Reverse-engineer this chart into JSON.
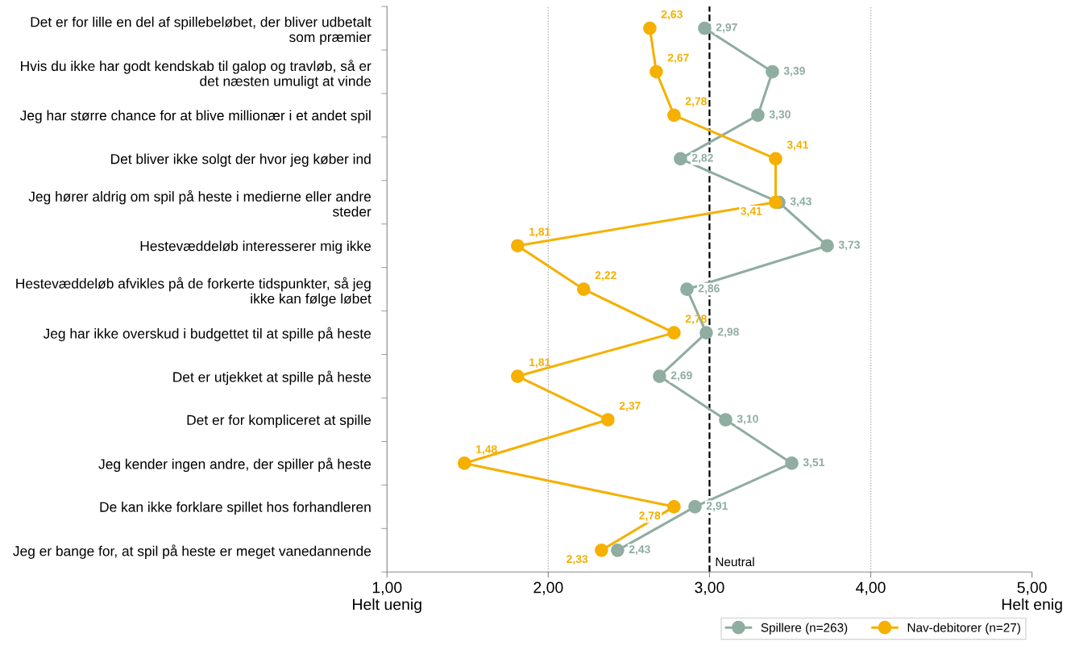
{
  "chart_data": {
    "type": "line",
    "orientation": "horizontal",
    "categories": [
      "Det er for lille en del af spillebeløbet, der bliver udbetalt som præmier",
      "Hvis du ikke har godt kendskab til galop og travløb, så er det næsten umuligt at vinde",
      "Jeg har større chance for at blive millionær i et andet spil",
      "Det bliver ikke solgt der hvor jeg køber ind",
      "Jeg hører aldrig om spil på heste i medierne eller andre steder",
      "Hestevæddeløb interesserer mig ikke",
      "Hestevæddeløb afvikles på de forkerte tidspunkter, så jeg ikke kan følge løbet",
      "Jeg har ikke overskud i budgettet til at spille på heste",
      "Det er utjekket at spille på heste",
      "Det er for kompliceret at spille",
      "Jeg kender ingen andre, der spiller på heste",
      "De kan ikke forklare spillet hos forhandleren",
      "Jeg er bange for, at spil på heste er meget vanedannende"
    ],
    "series": [
      {
        "name": "Spillere (n=263)",
        "color": "#8fada1",
        "values": [
          2.97,
          3.39,
          3.3,
          2.82,
          3.43,
          3.73,
          2.86,
          2.98,
          2.69,
          3.1,
          3.51,
          2.91,
          2.43
        ],
        "value_labels": [
          "2,97",
          "3,39",
          "3,30",
          "2,82",
          "3,43",
          "3,73",
          "2,86",
          "2,98",
          "2,69",
          "3,10",
          "3,51",
          "2,91",
          "2,43"
        ]
      },
      {
        "name": "Nav-debitorer (n=27)",
        "color": "#f5b000",
        "values": [
          2.63,
          2.67,
          2.78,
          3.41,
          3.41,
          1.81,
          2.22,
          2.78,
          1.81,
          2.37,
          1.48,
          2.78,
          2.33
        ],
        "value_labels": [
          "2,63",
          "2,67",
          "2,78",
          "3,41",
          "3,41",
          "1,81",
          "2,22",
          "2,78",
          "1,81",
          "2,37",
          "1,48",
          "2,78",
          "2,33"
        ]
      }
    ],
    "xlim": [
      1,
      5
    ],
    "xticks": [
      {
        "value": 1,
        "label": "1,00\nHelt uenig"
      },
      {
        "value": 2,
        "label": "2,00"
      },
      {
        "value": 3,
        "label": "3,00"
      },
      {
        "value": 4,
        "label": "4,00"
      },
      {
        "value": 5,
        "label": "5,00\nHelt enig"
      }
    ],
    "ref_lines": [
      {
        "axis": "x",
        "value": 2,
        "label": null,
        "color": "#a0a0a0",
        "line_style": "dotted"
      },
      {
        "axis": "x",
        "value": 3,
        "label": "Neutral",
        "color": "#000000",
        "line_style": "dashed"
      },
      {
        "axis": "x",
        "value": 4,
        "label": null,
        "color": "#a0a0a0",
        "line_style": "dotted"
      }
    ],
    "grid": false,
    "legend": "bottom",
    "marker": "circle",
    "line_style": "solid"
  }
}
